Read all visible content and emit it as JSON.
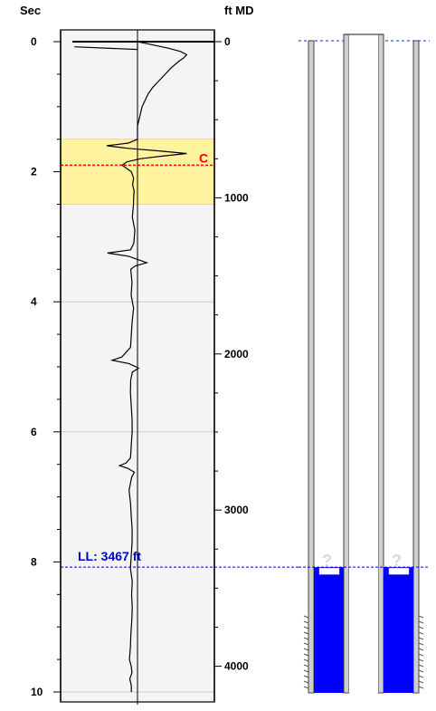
{
  "chart_data": {
    "type": "line",
    "left_axis": {
      "title": "Sec",
      "range": [
        0,
        10
      ],
      "ticks": [
        "0",
        "2",
        "4",
        "6",
        "8",
        "10"
      ]
    },
    "right_axis": {
      "title": "ft MD",
      "range": [
        0,
        4300
      ],
      "ticks": [
        "0",
        "1000",
        "2000",
        "3000",
        "4000"
      ]
    },
    "gridlines_sec": [
      4,
      6
    ],
    "highlight_band": {
      "from_sec": 1.5,
      "to_sec": 2.5,
      "color": "#fff3a0"
    },
    "markers": [
      {
        "label": "C",
        "sec": 1.9,
        "color": "#ff0000"
      },
      {
        "label": "LL: 3467 ft",
        "sec": 8.08,
        "color": "#0000cc"
      }
    ],
    "series": [
      {
        "points": [
          [
            0.0,
            0.5
          ],
          [
            0.05,
            0.6
          ],
          [
            0.1,
            0.7
          ],
          [
            0.15,
            0.78
          ],
          [
            0.2,
            0.82
          ],
          [
            0.25,
            0.8
          ],
          [
            0.3,
            0.77
          ],
          [
            0.4,
            0.72
          ],
          [
            0.5,
            0.68
          ],
          [
            0.6,
            0.64
          ],
          [
            0.7,
            0.6
          ],
          [
            0.8,
            0.57
          ],
          [
            0.9,
            0.55
          ],
          [
            1.0,
            0.53
          ],
          [
            1.1,
            0.52
          ],
          [
            1.2,
            0.51
          ],
          [
            1.3,
            0.5
          ],
          [
            1.4,
            0.5
          ],
          [
            1.5,
            0.5
          ],
          [
            1.56,
            0.44
          ],
          [
            1.6,
            0.3
          ],
          [
            1.64,
            0.44
          ],
          [
            1.68,
            0.64
          ],
          [
            1.72,
            0.82
          ],
          [
            1.76,
            0.66
          ],
          [
            1.8,
            0.52
          ],
          [
            1.85,
            0.43
          ],
          [
            1.9,
            0.4
          ],
          [
            1.95,
            0.43
          ],
          [
            2.0,
            0.46
          ],
          [
            2.1,
            0.47
          ],
          [
            2.2,
            0.47
          ],
          [
            2.3,
            0.48
          ],
          [
            2.4,
            0.47
          ],
          [
            2.5,
            0.48
          ],
          [
            2.7,
            0.47
          ],
          [
            2.9,
            0.48
          ],
          [
            3.1,
            0.47
          ],
          [
            3.2,
            0.46
          ],
          [
            3.25,
            0.3
          ],
          [
            3.3,
            0.44
          ],
          [
            3.4,
            0.56
          ],
          [
            3.45,
            0.48
          ],
          [
            3.5,
            0.46
          ],
          [
            3.7,
            0.47
          ],
          [
            3.9,
            0.46
          ],
          [
            4.1,
            0.47
          ],
          [
            4.3,
            0.46
          ],
          [
            4.5,
            0.46
          ],
          [
            4.7,
            0.46
          ],
          [
            4.85,
            0.4
          ],
          [
            4.9,
            0.34
          ],
          [
            4.95,
            0.44
          ],
          [
            5.02,
            0.51
          ],
          [
            5.08,
            0.47
          ],
          [
            5.2,
            0.46
          ],
          [
            5.4,
            0.46
          ],
          [
            5.6,
            0.46
          ],
          [
            5.8,
            0.46
          ],
          [
            6.0,
            0.46
          ],
          [
            6.2,
            0.46
          ],
          [
            6.4,
            0.46
          ],
          [
            6.48,
            0.42
          ],
          [
            6.52,
            0.38
          ],
          [
            6.56,
            0.44
          ],
          [
            6.62,
            0.48
          ],
          [
            6.7,
            0.46
          ],
          [
            6.9,
            0.45
          ],
          [
            7.1,
            0.46
          ],
          [
            7.3,
            0.46
          ],
          [
            7.5,
            0.46
          ],
          [
            7.7,
            0.46
          ],
          [
            7.9,
            0.46
          ],
          [
            8.1,
            0.46
          ],
          [
            8.3,
            0.47
          ],
          [
            8.5,
            0.46
          ],
          [
            8.7,
            0.46
          ],
          [
            8.9,
            0.46
          ],
          [
            9.1,
            0.46
          ],
          [
            9.3,
            0.46
          ],
          [
            9.5,
            0.45
          ],
          [
            9.6,
            0.46
          ],
          [
            9.7,
            0.46
          ],
          [
            9.8,
            0.45
          ],
          [
            9.9,
            0.46
          ],
          [
            10.0,
            0.46
          ]
        ]
      }
    ]
  },
  "well_schematic": {
    "fluid_level_label": "?",
    "fluid_color": "#0000ff"
  }
}
